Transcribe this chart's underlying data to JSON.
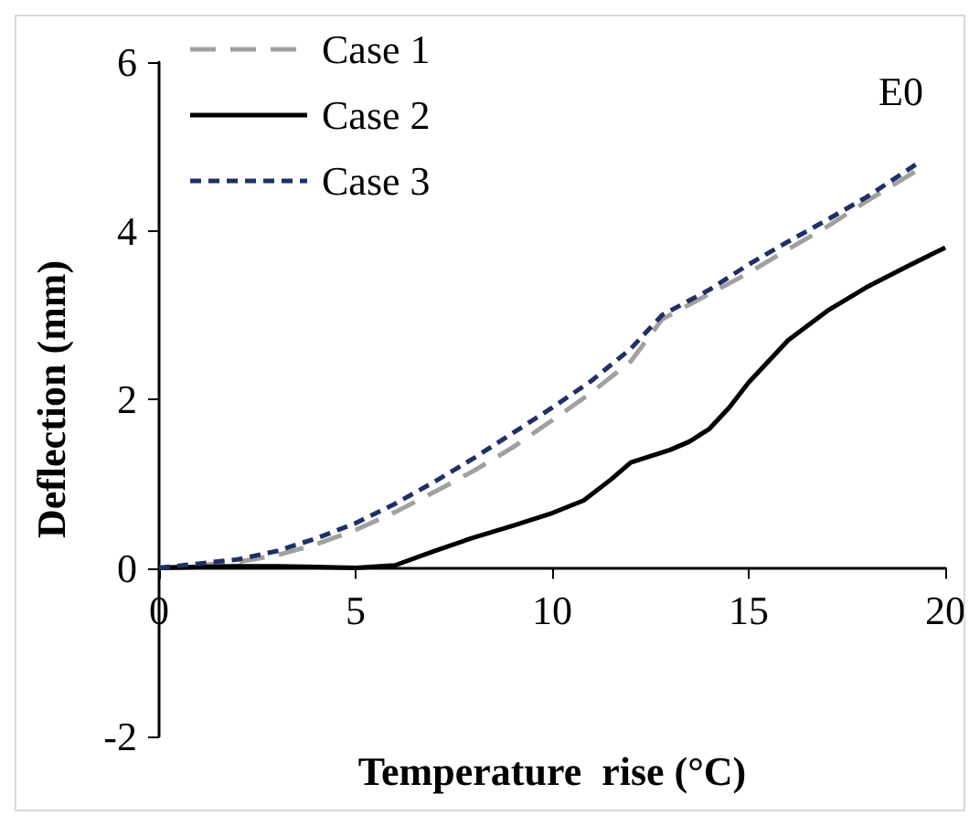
{
  "chart_data": {
    "type": "line",
    "xlabel": "Temperature  rise (°C)",
    "ylabel": "Deflection (mm)",
    "annotations": [
      "E0"
    ],
    "xlim": [
      0,
      20
    ],
    "ylim": [
      -2,
      6
    ],
    "xticks": [
      0,
      5,
      10,
      15,
      20
    ],
    "yticks": [
      -2,
      0,
      2,
      4,
      6
    ],
    "grid": false,
    "legend": "top left",
    "marker": "none",
    "series": [
      {
        "name": "Case 1",
        "color": "#a0a0a0",
        "line_style": "dashed",
        "x": [
          0,
          1,
          2,
          3,
          4,
          5,
          6,
          7,
          8,
          9,
          10,
          11,
          12,
          12.8,
          14,
          15,
          16,
          17,
          18,
          19.4
        ],
        "values": [
          0,
          0.03,
          0.07,
          0.15,
          0.28,
          0.45,
          0.66,
          0.9,
          1.15,
          1.43,
          1.75,
          2.08,
          2.45,
          2.95,
          3.25,
          3.5,
          3.78,
          4.05,
          4.35,
          4.75
        ]
      },
      {
        "name": "Case 2",
        "color": "#000000",
        "line_style": "solid",
        "x": [
          0,
          1,
          2,
          3,
          4,
          5,
          6,
          7,
          8,
          9,
          10,
          10.8,
          11.5,
          12,
          13,
          13.5,
          14,
          14.5,
          15,
          16,
          17,
          18,
          19,
          20
        ],
        "values": [
          0,
          0.01,
          0.02,
          0.02,
          0.01,
          0,
          0.03,
          0.2,
          0.36,
          0.5,
          0.65,
          0.8,
          1.05,
          1.25,
          1.4,
          1.5,
          1.65,
          1.9,
          2.2,
          2.7,
          3.05,
          3.33,
          3.57,
          3.8
        ]
      },
      {
        "name": "Case 3",
        "color": "#1f3068",
        "line_style": "dotted",
        "x": [
          0,
          1,
          2,
          3,
          4,
          5,
          6,
          7,
          8,
          9,
          10,
          11,
          12,
          12.8,
          14,
          15,
          16,
          17,
          18,
          19.3
        ],
        "values": [
          0,
          0.05,
          0.1,
          0.2,
          0.35,
          0.53,
          0.76,
          1.02,
          1.3,
          1.6,
          1.9,
          2.22,
          2.6,
          3.0,
          3.3,
          3.6,
          3.87,
          4.13,
          4.4,
          4.8
        ]
      }
    ]
  }
}
